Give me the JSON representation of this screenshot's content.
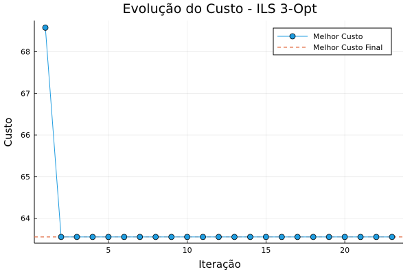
{
  "chart_data": {
    "type": "line",
    "title": "Evolução do Custo - ILS 3-Opt",
    "xlabel": "Iteração",
    "ylabel": "Custo",
    "xlim": [
      0.3,
      23.7
    ],
    "ylim": [
      63.4,
      68.75
    ],
    "xticks": [
      5,
      10,
      15,
      20
    ],
    "yticks": [
      64,
      65,
      66,
      67,
      68
    ],
    "grid": true,
    "legend_position": "top-right",
    "series": [
      {
        "name": "Melhor Custo",
        "style": "line-markers",
        "color": "#1f9ce0",
        "x": [
          1,
          2,
          3,
          4,
          5,
          6,
          7,
          8,
          9,
          10,
          11,
          12,
          13,
          14,
          15,
          16,
          17,
          18,
          19,
          20,
          21,
          22,
          23
        ],
        "y": [
          68.58,
          63.55,
          63.55,
          63.55,
          63.55,
          63.55,
          63.55,
          63.55,
          63.55,
          63.55,
          63.55,
          63.55,
          63.55,
          63.55,
          63.55,
          63.55,
          63.55,
          63.55,
          63.55,
          63.55,
          63.55,
          63.55,
          63.55
        ]
      },
      {
        "name": "Melhor Custo Final",
        "style": "dashed-hline",
        "color": "#e26f46",
        "y": 63.55
      }
    ]
  }
}
